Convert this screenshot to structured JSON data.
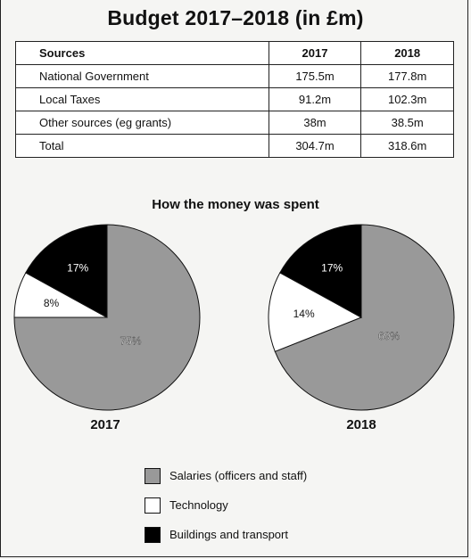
{
  "title": "Budget 2017–2018 (in £m)",
  "table": {
    "headers": [
      "Sources",
      "2017",
      "2018"
    ],
    "rows": [
      [
        "National Government",
        "175.5m",
        "177.8m"
      ],
      [
        "Local Taxes",
        "91.2m",
        "102.3m"
      ],
      [
        "Other sources (eg grants)",
        "38m",
        "38.5m"
      ],
      [
        "Total",
        "304.7m",
        "318.6m"
      ]
    ]
  },
  "pie_section_title": "How the money was spent",
  "colors": {
    "salaries": "#999999",
    "technology": "#ffffff",
    "buildings": "#000000"
  },
  "chart_data": [
    {
      "type": "table",
      "title": "Budget 2017–2018 (in £m)",
      "columns": [
        "Sources",
        "2017",
        "2018"
      ],
      "rows": [
        [
          "National Government",
          "175.5m",
          "177.8m"
        ],
        [
          "Local Taxes",
          "91.2m",
          "102.3m"
        ],
        [
          "Other sources (eg grants)",
          "38m",
          "38.5m"
        ],
        [
          "Total",
          "304.7m",
          "318.6m"
        ]
      ]
    },
    {
      "type": "pie",
      "title": "2017",
      "labels": [
        "Salaries (officers and staff)",
        "Technology",
        "Buildings and transport"
      ],
      "values": [
        75,
        8,
        17
      ],
      "value_labels": [
        "75%",
        "8%",
        "17%"
      ]
    },
    {
      "type": "pie",
      "title": "2018",
      "labels": [
        "Salaries (officers and staff)",
        "Technology",
        "Buildings and transport"
      ],
      "values": [
        69,
        14,
        17
      ],
      "value_labels": [
        "69%",
        "14%",
        "17%"
      ]
    }
  ],
  "legend": [
    {
      "label": "Salaries (officers and staff)",
      "key": "salaries"
    },
    {
      "label": "Technology",
      "key": "technology"
    },
    {
      "label": "Buildings and transport",
      "key": "buildings"
    }
  ]
}
